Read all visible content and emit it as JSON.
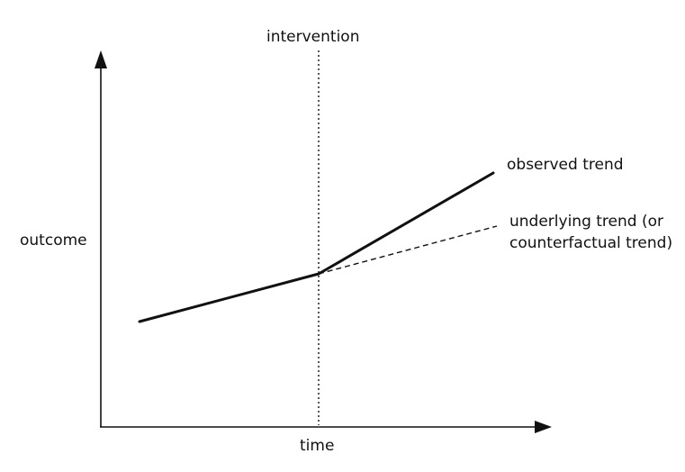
{
  "labels": {
    "intervention": "intervention",
    "outcome": "outcome",
    "time": "time",
    "observed": "observed trend",
    "underlying_line1": "underlying trend (or",
    "underlying_line2": "counterfactual trend)"
  },
  "colors": {
    "ink": "#111111",
    "background": "#ffffff"
  }
}
